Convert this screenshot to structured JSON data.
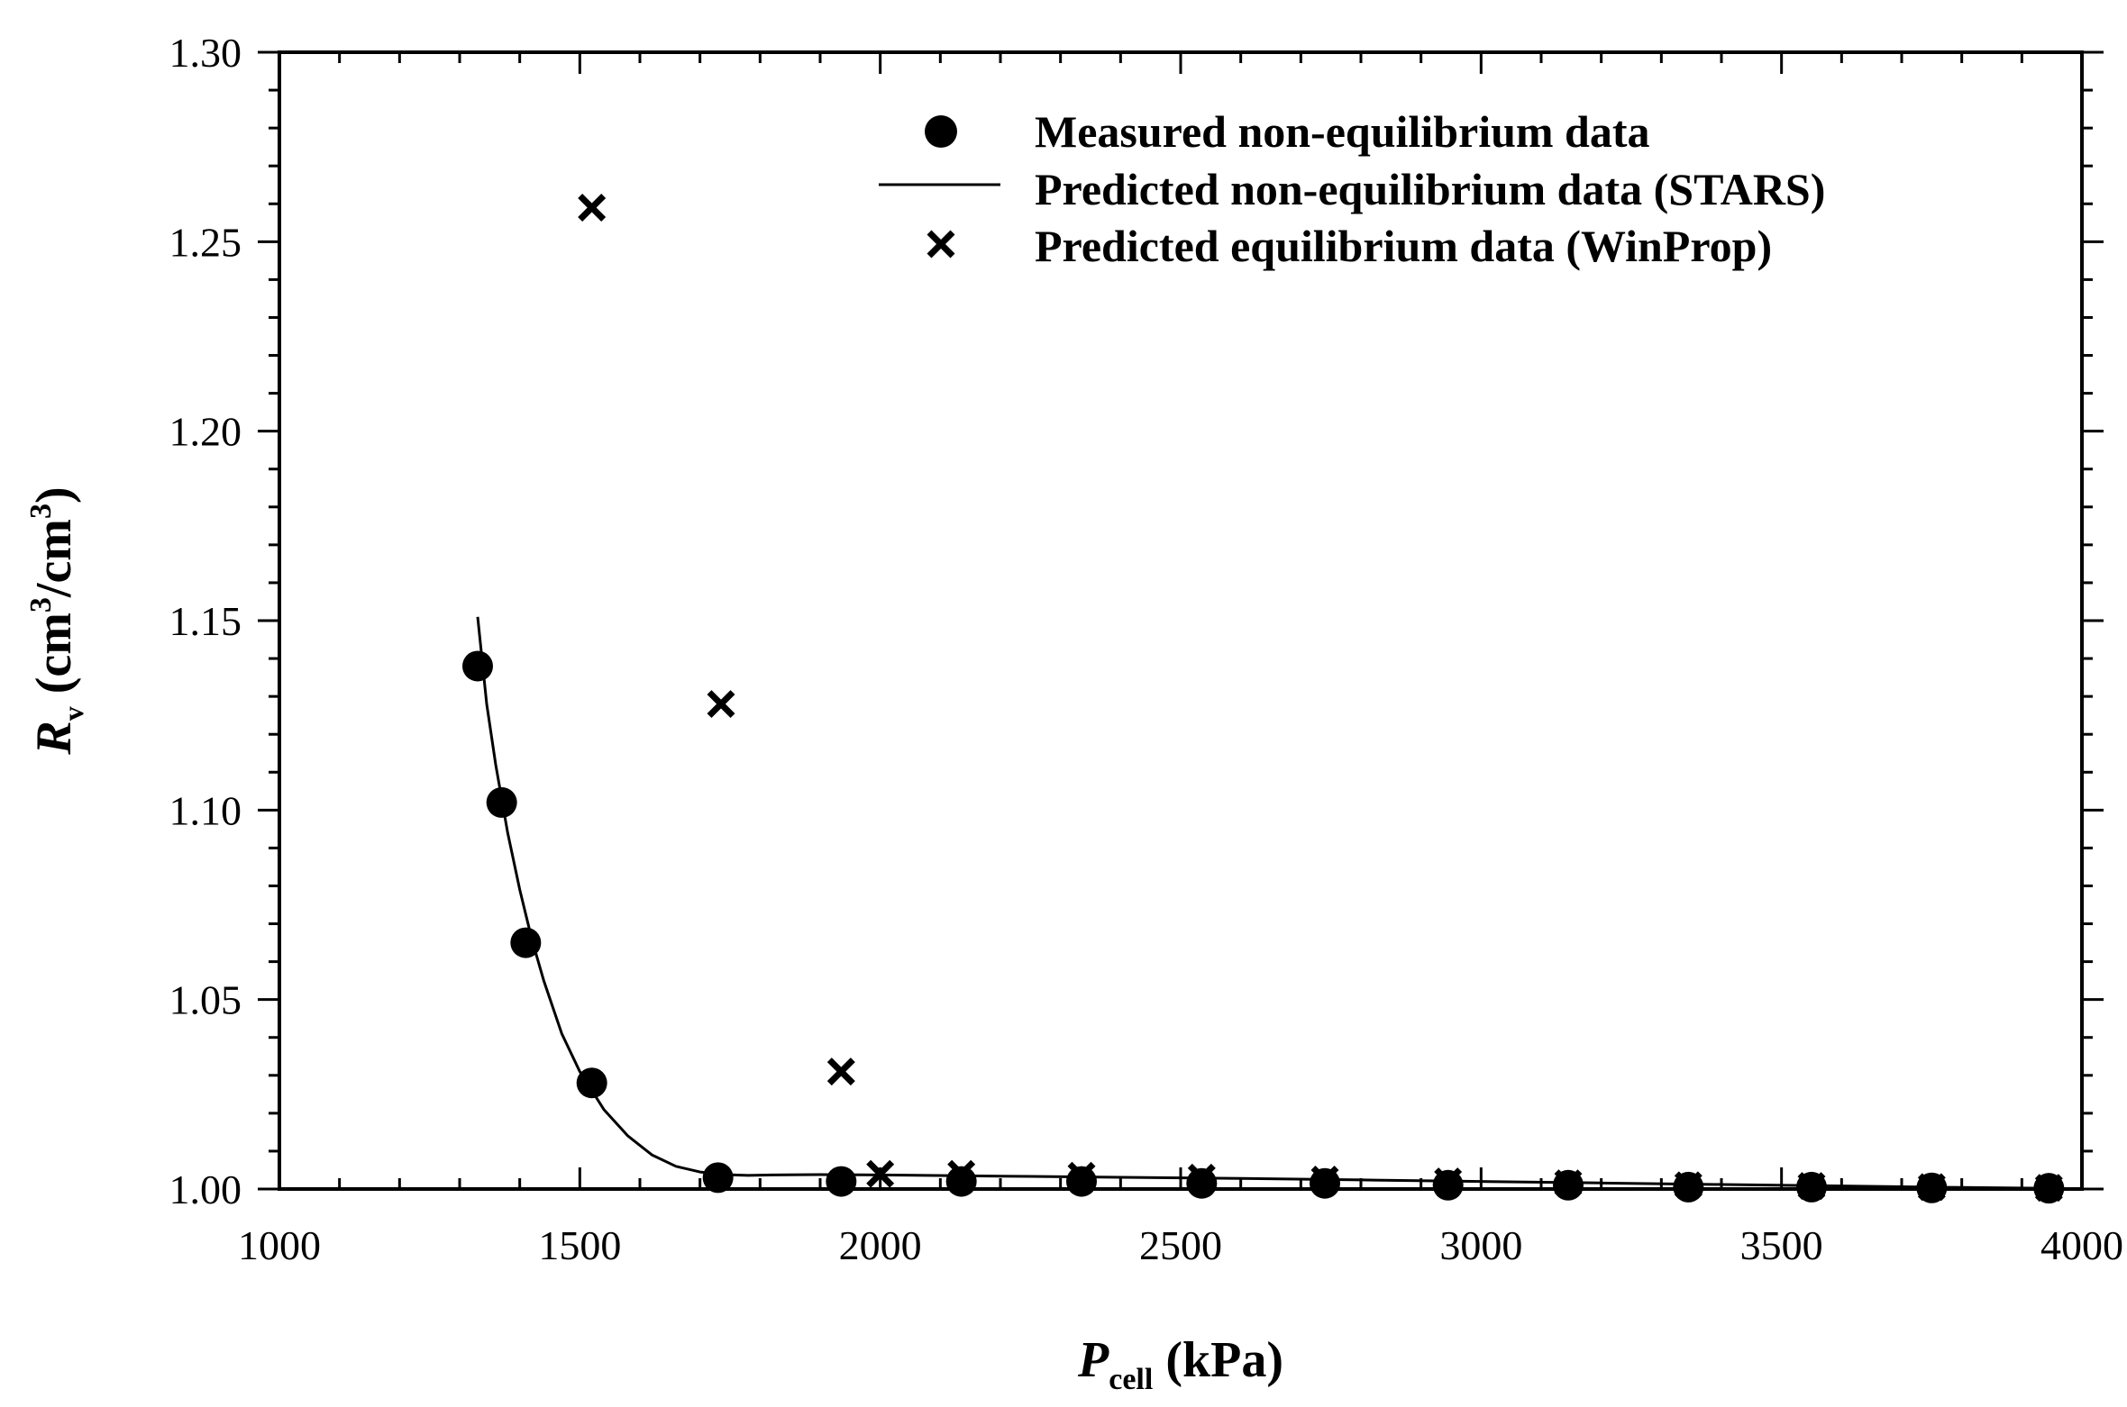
{
  "chart_data": {
    "type": "scatter",
    "xlabel": {
      "main": "P",
      "sub": "cell",
      "unit": " (kPa)"
    },
    "ylabel": {
      "main": "R",
      "sub": "v",
      "unit_open": " (cm",
      "sup1": "3",
      "mid": "/cm",
      "sup2": "3",
      "unit_close": ")"
    },
    "xlim": [
      1000,
      4000
    ],
    "ylim": [
      1.0,
      1.3
    ],
    "x_ticks": [
      1000,
      1500,
      2000,
      2500,
      3000,
      3500,
      4000
    ],
    "x_tick_labels": [
      "1000",
      "1500",
      "2000",
      "2500",
      "3000",
      "3500",
      "4000"
    ],
    "y_ticks": [
      1.0,
      1.05,
      1.1,
      1.15,
      1.2,
      1.25,
      1.3
    ],
    "y_tick_labels": [
      "1.00",
      "1.05",
      "1.10",
      "1.15",
      "1.20",
      "1.25",
      "1.30"
    ],
    "x_minor_step": 100,
    "y_minor_step": 0.01,
    "grid": false,
    "legend_position": "top-right",
    "series": [
      {
        "name": "Measured non-equilibrium data",
        "style": "filled-circle",
        "x": [
          1330,
          1370,
          1410,
          1520,
          1730,
          1935,
          2135,
          2335,
          2535,
          2740,
          2945,
          3145,
          3345,
          3550,
          3750,
          3945
        ],
        "y": [
          1.138,
          1.102,
          1.065,
          1.028,
          1.003,
          1.002,
          1.002,
          1.002,
          1.0015,
          1.0015,
          1.001,
          1.001,
          1.0005,
          1.0005,
          1.0003,
          1.0002
        ]
      },
      {
        "name": "Predicted non-equilibrium data (STARS)",
        "style": "line",
        "x": [
          1330,
          1345,
          1360,
          1380,
          1400,
          1420,
          1440,
          1470,
          1500,
          1540,
          1580,
          1620,
          1660,
          1700,
          1740,
          1780,
          1820,
          1900,
          2000,
          2200,
          2400,
          2600,
          2800,
          3000,
          3200,
          3400,
          3600,
          3800,
          3950
        ],
        "y": [
          1.151,
          1.128,
          1.112,
          1.094,
          1.079,
          1.066,
          1.055,
          1.041,
          1.031,
          1.021,
          1.014,
          1.009,
          1.006,
          1.0045,
          1.0038,
          1.0036,
          1.0037,
          1.0038,
          1.0037,
          1.0034,
          1.0031,
          1.0028,
          1.0024,
          1.002,
          1.0016,
          1.0012,
          1.0008,
          1.0004,
          1.0002
        ]
      },
      {
        "name": "Predicted equilibrium data  (WinProp)",
        "style": "x-mark",
        "x": [
          1520,
          1735,
          1935,
          2000,
          2135,
          2335,
          2535,
          2740,
          2945,
          3145,
          3345,
          3550,
          3750,
          3945
        ],
        "y": [
          1.259,
          1.128,
          1.031,
          1.004,
          1.004,
          1.0035,
          1.003,
          1.0025,
          1.002,
          1.0015,
          1.001,
          1.0008,
          1.0005,
          1.0003
        ]
      }
    ]
  }
}
